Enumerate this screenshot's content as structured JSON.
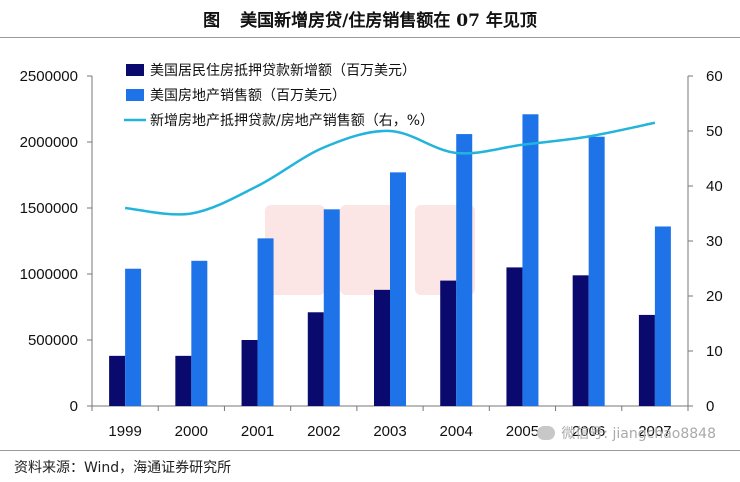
{
  "header": {
    "prefix": "图",
    "title": "美国新增房贷/住房销售额在 07 年见顶"
  },
  "footer": {
    "source": "资料来源：Wind，海通证券研究所",
    "wechat": "微信号: jiangchao8848"
  },
  "chart_data": {
    "type": "bar",
    "categories": [
      "1999",
      "2000",
      "2001",
      "2002",
      "2003",
      "2004",
      "2005",
      "2006",
      "2007"
    ],
    "series": [
      {
        "name": "美国居民住房抵押贷款新增额（百万美元）",
        "type": "bar",
        "axis": "left",
        "color": "#0a0a6e",
        "values": [
          380000,
          380000,
          500000,
          710000,
          880000,
          950000,
          1050000,
          990000,
          690000
        ]
      },
      {
        "name": "美国房地产销售额（百万美元）",
        "type": "bar",
        "axis": "left",
        "color": "#1e73e8",
        "values": [
          1040000,
          1100000,
          1270000,
          1490000,
          1770000,
          2060000,
          2210000,
          2040000,
          1360000
        ]
      },
      {
        "name": "新增房地产抵押贷款/房地产销售额（右，%）",
        "type": "line",
        "axis": "right",
        "color": "#23b4dc",
        "values": [
          36,
          35,
          40,
          47,
          50,
          46,
          47.5,
          49,
          51.5
        ]
      }
    ],
    "y_left": {
      "ylim": [
        0,
        2500000
      ],
      "ticks": [
        "0",
        "500000",
        "1000000",
        "1500000",
        "2000000",
        "2500000"
      ]
    },
    "y_right": {
      "ylim": [
        0,
        60
      ],
      "ticks": [
        "0",
        "10",
        "20",
        "30",
        "40",
        "50",
        "60"
      ]
    },
    "legend_position": "top-left",
    "grid": false
  }
}
